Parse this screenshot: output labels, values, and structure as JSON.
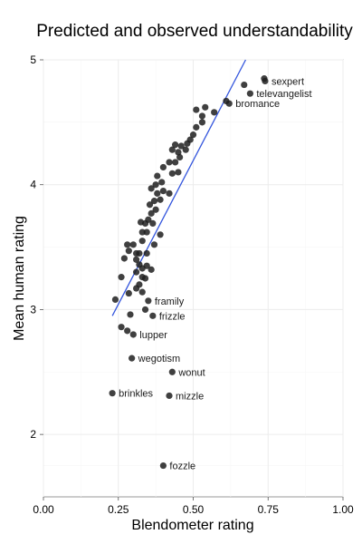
{
  "chart_data": {
    "type": "scatter",
    "title": "Predicted and observed understandability",
    "xlabel": "Blendometer rating",
    "ylabel": "Mean human rating",
    "xlim": [
      0.0,
      1.0
    ],
    "ylim": [
      1.5,
      5.0
    ],
    "xticks": [
      0.0,
      0.25,
      0.5,
      0.75,
      1.0
    ],
    "xtick_labels": [
      "0.00",
      "0.25",
      "0.50",
      "0.75",
      "1.00"
    ],
    "yticks": [
      2,
      3,
      4,
      5
    ],
    "ytick_labels": [
      "2",
      "3",
      "4",
      "5"
    ],
    "grid": true,
    "fit_line": {
      "color": "#3355dd",
      "x": [
        0.23,
        0.675
      ],
      "y": [
        2.95,
        5.0
      ]
    },
    "labeled_points": [
      {
        "label": "sexpert",
        "x": 0.74,
        "y": 4.83
      },
      {
        "label": "televangelist",
        "x": 0.69,
        "y": 4.73
      },
      {
        "label": "bromance",
        "x": 0.62,
        "y": 4.65
      },
      {
        "label": "framily",
        "x": 0.35,
        "y": 3.07
      },
      {
        "label": "frizzle",
        "x": 0.365,
        "y": 2.95
      },
      {
        "label": "lupper",
        "x": 0.3,
        "y": 2.8
      },
      {
        "label": "wegotism",
        "x": 0.295,
        "y": 2.61
      },
      {
        "label": "wonut",
        "x": 0.43,
        "y": 2.5
      },
      {
        "label": "brinkles",
        "x": 0.23,
        "y": 2.33
      },
      {
        "label": "mizzle",
        "x": 0.42,
        "y": 2.31
      },
      {
        "label": "fozzle",
        "x": 0.4,
        "y": 1.75
      }
    ],
    "points": [
      [
        0.737,
        4.85
      ],
      [
        0.67,
        4.8
      ],
      [
        0.61,
        4.67
      ],
      [
        0.57,
        4.58
      ],
      [
        0.54,
        4.62
      ],
      [
        0.53,
        4.55
      ],
      [
        0.51,
        4.6
      ],
      [
        0.53,
        4.5
      ],
      [
        0.51,
        4.46
      ],
      [
        0.5,
        4.4
      ],
      [
        0.49,
        4.36
      ],
      [
        0.48,
        4.33
      ],
      [
        0.475,
        4.28
      ],
      [
        0.46,
        4.31
      ],
      [
        0.45,
        4.26
      ],
      [
        0.44,
        4.32
      ],
      [
        0.43,
        4.28
      ],
      [
        0.455,
        4.22
      ],
      [
        0.44,
        4.18
      ],
      [
        0.42,
        4.18
      ],
      [
        0.45,
        4.1
      ],
      [
        0.43,
        4.09
      ],
      [
        0.4,
        4.14
      ],
      [
        0.38,
        4.07
      ],
      [
        0.375,
        4.0
      ],
      [
        0.395,
        4.02
      ],
      [
        0.38,
        3.93
      ],
      [
        0.36,
        3.97
      ],
      [
        0.39,
        3.88
      ],
      [
        0.4,
        3.95
      ],
      [
        0.37,
        3.87
      ],
      [
        0.355,
        3.84
      ],
      [
        0.375,
        3.8
      ],
      [
        0.36,
        3.77
      ],
      [
        0.35,
        3.72
      ],
      [
        0.365,
        3.69
      ],
      [
        0.34,
        3.69
      ],
      [
        0.325,
        3.7
      ],
      [
        0.33,
        3.62
      ],
      [
        0.345,
        3.62
      ],
      [
        0.39,
        3.6
      ],
      [
        0.37,
        3.52
      ],
      [
        0.33,
        3.55
      ],
      [
        0.3,
        3.52
      ],
      [
        0.28,
        3.52
      ],
      [
        0.285,
        3.47
      ],
      [
        0.31,
        3.45
      ],
      [
        0.32,
        3.45
      ],
      [
        0.345,
        3.45
      ],
      [
        0.27,
        3.41
      ],
      [
        0.31,
        3.4
      ],
      [
        0.32,
        3.36
      ],
      [
        0.33,
        3.33
      ],
      [
        0.345,
        3.35
      ],
      [
        0.36,
        3.32
      ],
      [
        0.31,
        3.3
      ],
      [
        0.26,
        3.26
      ],
      [
        0.33,
        3.26
      ],
      [
        0.34,
        3.25
      ],
      [
        0.32,
        3.2
      ],
      [
        0.31,
        3.17
      ],
      [
        0.33,
        3.14
      ],
      [
        0.285,
        3.13
      ],
      [
        0.24,
        3.08
      ],
      [
        0.34,
        3.0
      ],
      [
        0.29,
        2.96
      ],
      [
        0.26,
        2.86
      ],
      [
        0.28,
        2.83
      ],
      [
        0.42,
        3.93
      ]
    ]
  }
}
